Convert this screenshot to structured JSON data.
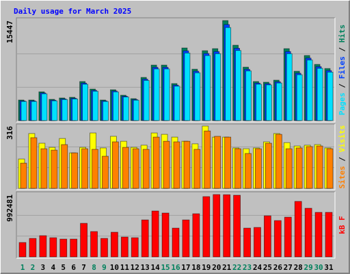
{
  "title": "Daily usage for March 2025",
  "separator": "/",
  "chart_data": [
    {
      "type": "bar",
      "ylim": [
        0,
        15447
      ],
      "yticks": [
        15447
      ],
      "series": [
        {
          "name": "Hits",
          "color": "#00805c",
          "values": [
            3174,
            3174,
            4444,
            3280,
            3491,
            3597,
            6030,
            4867,
            3174,
            4761,
            3914,
            3386,
            6665,
            8570,
            8570,
            5713,
            11215,
            7935,
            10792,
            11109,
            15447,
            11638,
            8252,
            6030,
            5925,
            6242,
            11109,
            7618,
            10051,
            8676,
            8041
          ]
        },
        {
          "name": "Files",
          "color": "#0040ff",
          "values": [
            3040,
            3050,
            4270,
            3150,
            3350,
            3450,
            5790,
            4670,
            3050,
            4570,
            3760,
            3250,
            6400,
            8230,
            8230,
            5480,
            10770,
            7620,
            10360,
            10660,
            14830,
            11170,
            7920,
            5790,
            5690,
            5990,
            10660,
            7310,
            9650,
            8330,
            7720
          ]
        },
        {
          "name": "Pages",
          "color": "#00e0ff",
          "values": [
            2950,
            2950,
            4130,
            3050,
            3250,
            3340,
            5610,
            4530,
            2950,
            4430,
            3640,
            3150,
            6200,
            7970,
            7970,
            5310,
            10430,
            7380,
            10040,
            10330,
            14370,
            10820,
            7670,
            5610,
            5510,
            5800,
            10330,
            7080,
            9350,
            8070,
            7480
          ]
        }
      ]
    },
    {
      "type": "bar",
      "ylim": [
        0,
        316
      ],
      "yticks": [
        316
      ],
      "series": [
        {
          "name": "Visits",
          "color": "#ffff00",
          "values": [
            149,
            278,
            229,
            208,
            253,
            180,
            208,
            281,
            205,
            264,
            239,
            208,
            219,
            281,
            274,
            260,
            239,
            226,
            316,
            260,
            260,
            205,
            201,
            205,
            236,
            278,
            232,
            215,
            219,
            222,
            205
          ]
        },
        {
          "name": "Sites",
          "color": "#ff8000",
          "values": [
            128,
            257,
            201,
            194,
            222,
            180,
            201,
            198,
            163,
            236,
            208,
            201,
            198,
            260,
            239,
            236,
            239,
            198,
            291,
            264,
            260,
            201,
            177,
            201,
            229,
            274,
            201,
            205,
            212,
            215,
            201
          ]
        }
      ]
    },
    {
      "type": "bar",
      "ylim": [
        0,
        992481
      ],
      "yticks": [
        992481
      ],
      "categories": [
        "1",
        "2",
        "3",
        "4",
        "5",
        "6",
        "7",
        "8",
        "9",
        "10",
        "11",
        "12",
        "13",
        "14",
        "15",
        "16",
        "17",
        "18",
        "19",
        "20",
        "21",
        "22",
        "23",
        "24",
        "25",
        "26",
        "27",
        "28",
        "29",
        "30",
        "31"
      ],
      "category_colors": [
        "#00805c",
        "#00805c",
        "#000000",
        "#000000",
        "#000000",
        "#000000",
        "#000000",
        "#00805c",
        "#00805c",
        "#000000",
        "#000000",
        "#000000",
        "#000000",
        "#000000",
        "#00805c",
        "#00805c",
        "#000000",
        "#000000",
        "#000000",
        "#000000",
        "#000000",
        "#00805c",
        "#00805c",
        "#000000",
        "#000000",
        "#000000",
        "#000000",
        "#000000",
        "#00805c",
        "#00805c",
        "#000000"
      ],
      "series": [
        {
          "name": "kB F",
          "color": "#ff0000",
          "values": [
            229026,
            294462,
            338086,
            305368,
            283556,
            283556,
            534394,
            403522,
            294462,
            392616,
            316274,
            305368,
            588924,
            730702,
            697984,
            458052,
            588924,
            687078,
            959728,
            992481,
            990000,
            981540,
            458052,
            468958,
            654360,
            578018,
            632548,
            883386,
            774326,
            708890,
            708890
          ]
        }
      ]
    }
  ]
}
